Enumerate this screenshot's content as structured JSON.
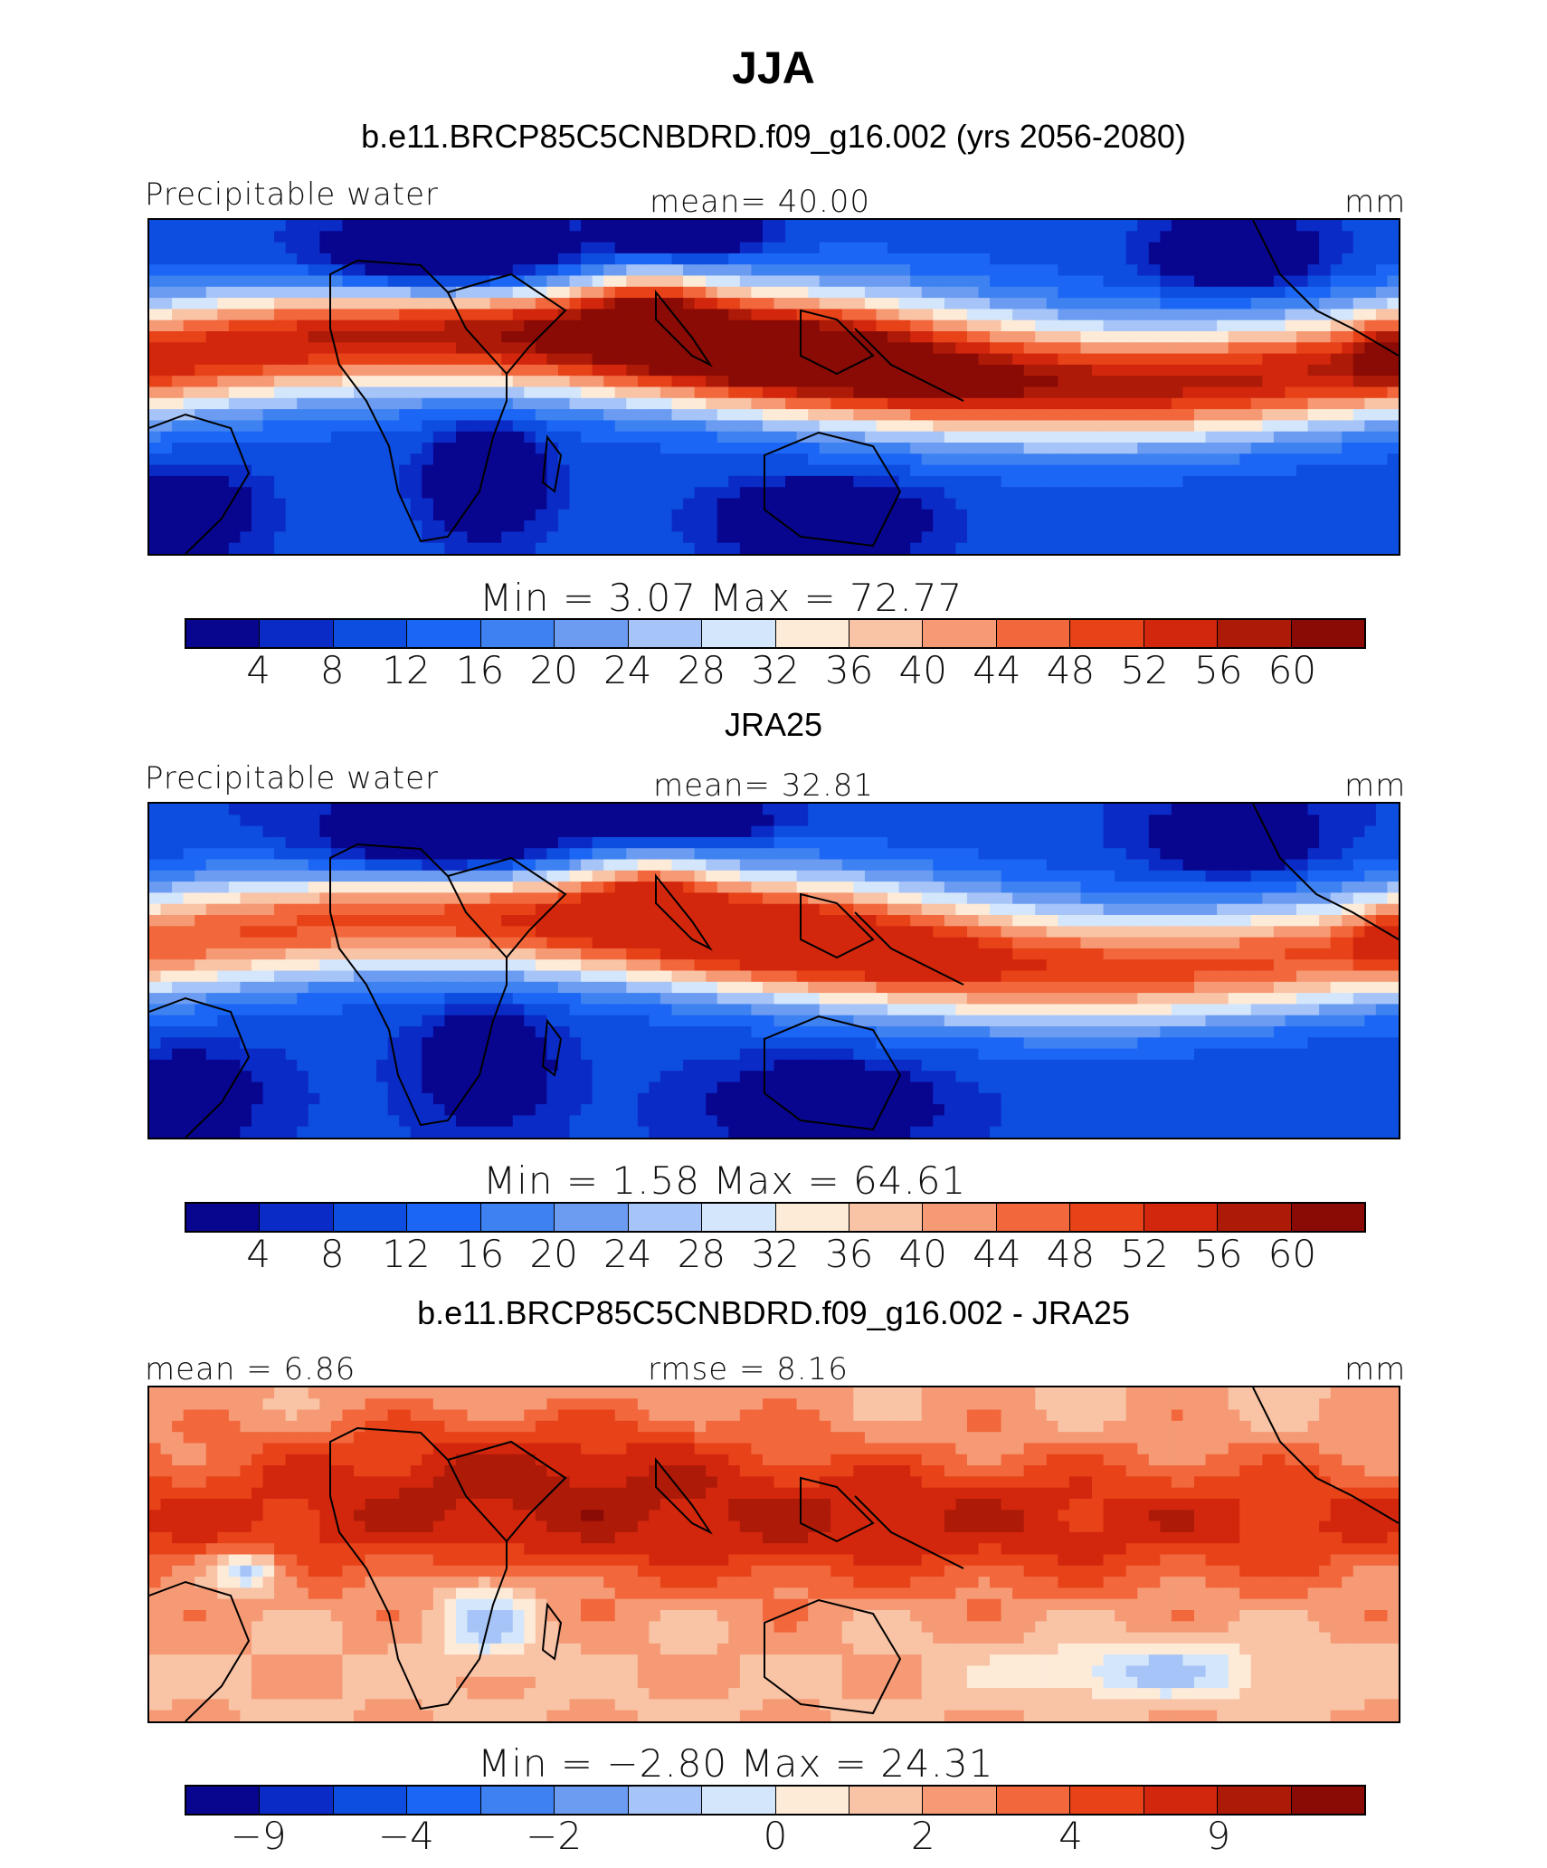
{
  "main_title": "JJA",
  "palette": [
    "#08068f",
    "#0b2bc7",
    "#0d4de0",
    "#1c66f5",
    "#3e82f2",
    "#6b9cf2",
    "#a6c4f7",
    "#d4e6fb",
    "#fdebd8",
    "#f9c3a6",
    "#f59a74",
    "#f2673c",
    "#e84218",
    "#d3270d",
    "#ae1a08",
    "#8a0a05"
  ],
  "coastline_color": "#000000",
  "chart_data": [
    {
      "type": "heatmap",
      "title": "b.e11.BRCP85C5CNBDRD.f09_g16.002 (yrs 2056-2080)",
      "left_label": "Precipitable water",
      "center_label": "mean=   40.00",
      "units": "mm",
      "min_max_label": "Min  =    3.07  Max  =   72.77",
      "min": 3.07,
      "max": 72.77,
      "mean": 40.0,
      "colorbar_ticks": [
        "4",
        "8",
        "12",
        "16",
        "20",
        "24",
        "28",
        "32",
        "36",
        "40",
        "44",
        "48",
        "52",
        "56",
        "60"
      ],
      "levels": [
        4,
        8,
        12,
        16,
        20,
        24,
        28,
        32,
        36,
        40,
        44,
        48,
        52,
        56,
        60
      ],
      "extent": {
        "lon": [
          -60,
          300
        ],
        "lat": [
          -40,
          40
        ]
      }
    },
    {
      "type": "heatmap",
      "title": "JRA25",
      "left_label": "Precipitable water",
      "center_label": "mean=   32.81",
      "units": "mm",
      "min_max_label": "Min  =    1.58  Max  =   64.61",
      "min": 1.58,
      "max": 64.61,
      "mean": 32.81,
      "colorbar_ticks": [
        "4",
        "8",
        "12",
        "16",
        "20",
        "24",
        "28",
        "32",
        "36",
        "40",
        "44",
        "48",
        "52",
        "56",
        "60"
      ],
      "levels": [
        4,
        8,
        12,
        16,
        20,
        24,
        28,
        32,
        36,
        40,
        44,
        48,
        52,
        56,
        60
      ],
      "extent": {
        "lon": [
          -60,
          300
        ],
        "lat": [
          -40,
          40
        ]
      }
    },
    {
      "type": "heatmap",
      "title": "b.e11.BRCP85C5CNBDRD.f09_g16.002 - JRA25",
      "left_label": "mean  =    6.86",
      "center_label": "rmse  =    8.16",
      "units": "mm",
      "min_max_label": "Min  =   −2.80  Max  =   24.31",
      "min": -2.8,
      "max": 24.31,
      "mean": 6.86,
      "rmse": 8.16,
      "colorbar_ticks": [
        "−9",
        "−4",
        "−2",
        "0",
        "2",
        "4",
        "9"
      ],
      "levels": [
        -12,
        -9,
        -6,
        -4,
        -3,
        -2,
        -1,
        0,
        1,
        2,
        3,
        4,
        6,
        9,
        12
      ],
      "extent": {
        "lon": [
          -60,
          300
        ],
        "lat": [
          -40,
          40
        ]
      }
    }
  ]
}
